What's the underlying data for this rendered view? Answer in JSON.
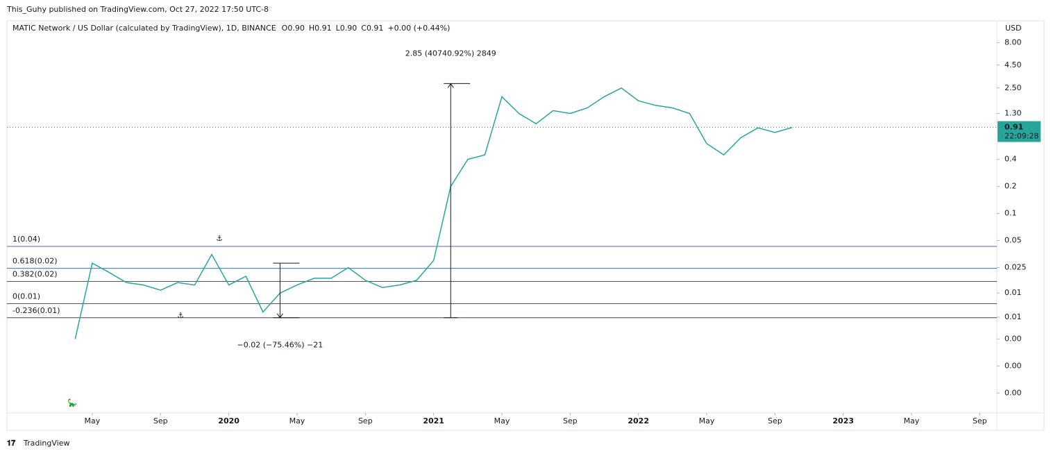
{
  "header": {
    "publisher": "This_Guhy published on TradingView.com, Oct 27, 2022 17:50 UTC-8"
  },
  "chart_data": {
    "type": "line",
    "title": "MATIC Network / US Dollar (calculated by TradingView), 1D, BINANCE",
    "ohlc": [
      {
        "key": "O",
        "value": "0.90"
      },
      {
        "key": "H",
        "value": "0.91"
      },
      {
        "key": "L",
        "value": "0.90"
      },
      {
        "key": "C",
        "value": "0.91"
      }
    ],
    "change": "+0.00 (+0.44%)",
    "y_unit": "USD",
    "log_scale": true,
    "x": [
      "2019-04",
      "2019-05",
      "2019-06",
      "2019-07",
      "2019-08",
      "2019-09",
      "2019-10",
      "2019-11",
      "2019-12",
      "2020-01",
      "2020-02",
      "2020-03",
      "2020-04",
      "2020-05",
      "2020-06",
      "2020-07",
      "2020-08",
      "2020-09",
      "2020-10",
      "2020-11",
      "2020-12",
      "2021-01",
      "2021-02",
      "2021-03",
      "2021-04",
      "2021-05",
      "2021-06",
      "2021-07",
      "2021-08",
      "2021-09",
      "2021-10",
      "2021-11",
      "2021-12",
      "2022-01",
      "2022-02",
      "2022-03",
      "2022-04",
      "2022-05",
      "2022-06",
      "2022-07",
      "2022-08",
      "2022-09",
      "2022-10"
    ],
    "series": [
      {
        "name": "MATIC/USD",
        "color": "#26a69a",
        "values": [
          0.004,
          0.028,
          0.022,
          0.017,
          0.016,
          0.014,
          0.017,
          0.016,
          0.035,
          0.016,
          0.02,
          0.008,
          0.013,
          0.016,
          0.019,
          0.019,
          0.025,
          0.018,
          0.015,
          0.016,
          0.018,
          0.03,
          0.2,
          0.4,
          0.45,
          2.0,
          1.3,
          1.0,
          1.4,
          1.3,
          1.5,
          2.0,
          2.5,
          1.8,
          1.6,
          1.5,
          1.3,
          0.6,
          0.45,
          0.7,
          0.9,
          0.8,
          0.91
        ]
      }
    ],
    "xlim": [
      "2018-12",
      "2023-10"
    ],
    "xticks": [
      {
        "value": "2019-05",
        "label": "May"
      },
      {
        "value": "2019-09",
        "label": "Sep"
      },
      {
        "value": "2020-01",
        "label": "2020"
      },
      {
        "value": "2020-05",
        "label": "May"
      },
      {
        "value": "2020-09",
        "label": "Sep"
      },
      {
        "value": "2021-01",
        "label": "2021"
      },
      {
        "value": "2021-05",
        "label": "May"
      },
      {
        "value": "2021-09",
        "label": "Sep"
      },
      {
        "value": "2022-01",
        "label": "2022"
      },
      {
        "value": "2022-05",
        "label": "May"
      },
      {
        "value": "2022-09",
        "label": "Sep"
      },
      {
        "value": "2023-01",
        "label": "2023"
      },
      {
        "value": "2023-05",
        "label": "May"
      },
      {
        "value": "2023-09",
        "label": "Sep"
      }
    ],
    "ylim": [
      0.0006,
      14
    ],
    "yticks": [
      {
        "value": 8,
        "label": "8.00"
      },
      {
        "value": 4.5,
        "label": "4.50"
      },
      {
        "value": 2.5,
        "label": "2.50"
      },
      {
        "value": 1.3,
        "label": "1.30"
      },
      0.4,
      0.2,
      0.1,
      0.05,
      0.025,
      {
        "value": 0.013,
        "label": "0.01"
      },
      {
        "value": 0.007,
        "label": "0.01"
      },
      {
        "value": 0.004,
        "label": "0.00"
      },
      {
        "value": 0.002,
        "label": "0.00"
      },
      {
        "value": 0.001,
        "label": "0.00"
      }
    ],
    "last_price": 0.91,
    "countdown": "22:09:28",
    "fib_levels": [
      {
        "label": "1(0.04)",
        "price": 0.043,
        "color": "#4a6fa5"
      },
      {
        "label": "0.618(0.02)",
        "price": 0.0245,
        "color": "#4a6fa5"
      },
      {
        "label": "0.382(0.02)",
        "price": 0.0175,
        "color": "#3f51b5"
      },
      {
        "label": "0(0.01)",
        "price": 0.0099,
        "color": "#3f51b5"
      },
      {
        "label": "-0.236(0.01)",
        "price": 0.0069,
        "color": "#a0134f"
      }
    ],
    "measures": [
      {
        "text": "2.85 (40740.92%) 2849",
        "x": "2021-02",
        "from": 0.0069,
        "to": 2.8,
        "label_price": 6.0
      },
      {
        "text": "−0.02 (−75.46%) −21",
        "x": "2020-04",
        "from": 0.028,
        "to": 0.0069,
        "label_price": 0.0034
      }
    ]
  },
  "footer": {
    "brand": "TradingView"
  }
}
